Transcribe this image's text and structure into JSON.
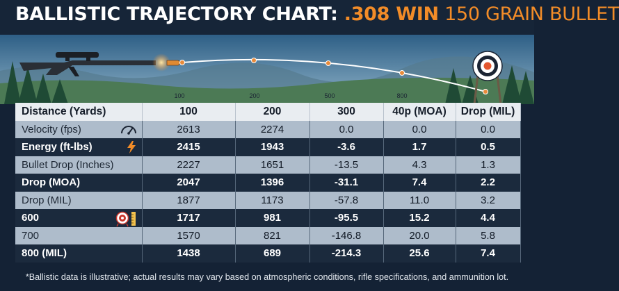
{
  "title": {
    "part1": "BALLISTIC TRAJECTORY CHART: ",
    "part2": ".308 WIN",
    "part3": " 150 GRAIN BULLET"
  },
  "colors": {
    "accent": "#f28c28",
    "dark_row": "#1b2a3d",
    "light_row": "#aebccb",
    "header_row": "#e9edf1"
  },
  "trajectory": {
    "marker_labels": [
      "100",
      "200",
      "500",
      "800"
    ]
  },
  "chart_data": {
    "type": "table",
    "title": "BALLISTIC TRAJECTORY CHART: .308 WIN 150 GRAIN BULLET",
    "columns": [
      "Distance (Yards)",
      "100",
      "200",
      "300",
      "40p (MOA)",
      "Drop (MIL)"
    ],
    "rows": [
      {
        "label": "Velocity (fps)",
        "icon": "speedometer-icon",
        "values": [
          "2613",
          "2274",
          "0.0",
          "0.0",
          "0.0"
        ]
      },
      {
        "label": "Energy (ft-lbs)",
        "icon": "lightning-icon",
        "values": [
          "2415",
          "1943",
          "-3.6",
          "1.7",
          "0.5"
        ]
      },
      {
        "label": "Bullet Drop (Inches)",
        "icon": "",
        "values": [
          "2227",
          "1651",
          "-13.5",
          "4.3",
          "1.3"
        ]
      },
      {
        "label": "Drop (MOA)",
        "icon": "",
        "values": [
          "2047",
          "1396",
          "-31.1",
          "7.4",
          "2.2"
        ]
      },
      {
        "label": "Drop (MIL)",
        "icon": "",
        "values": [
          "1877",
          "1173",
          "-57.8",
          "11.0",
          "3.2"
        ]
      },
      {
        "label": "600",
        "icon": "target-ruler-icon",
        "values": [
          "1717",
          "981",
          "-95.5",
          "15.2",
          "4.4"
        ]
      },
      {
        "label": "700",
        "icon": "",
        "values": [
          "1570",
          "821",
          "-146.8",
          "20.0",
          "5.8"
        ]
      },
      {
        "label": "800 (MIL)",
        "icon": "",
        "values": [
          "1438",
          "689",
          "-214.3",
          "25.6",
          "7.4"
        ]
      }
    ]
  },
  "footnote": "*Ballistic data is illustrative; actual results may vary based on atmospheric conditions, rifle specifications, and ammunition lot."
}
